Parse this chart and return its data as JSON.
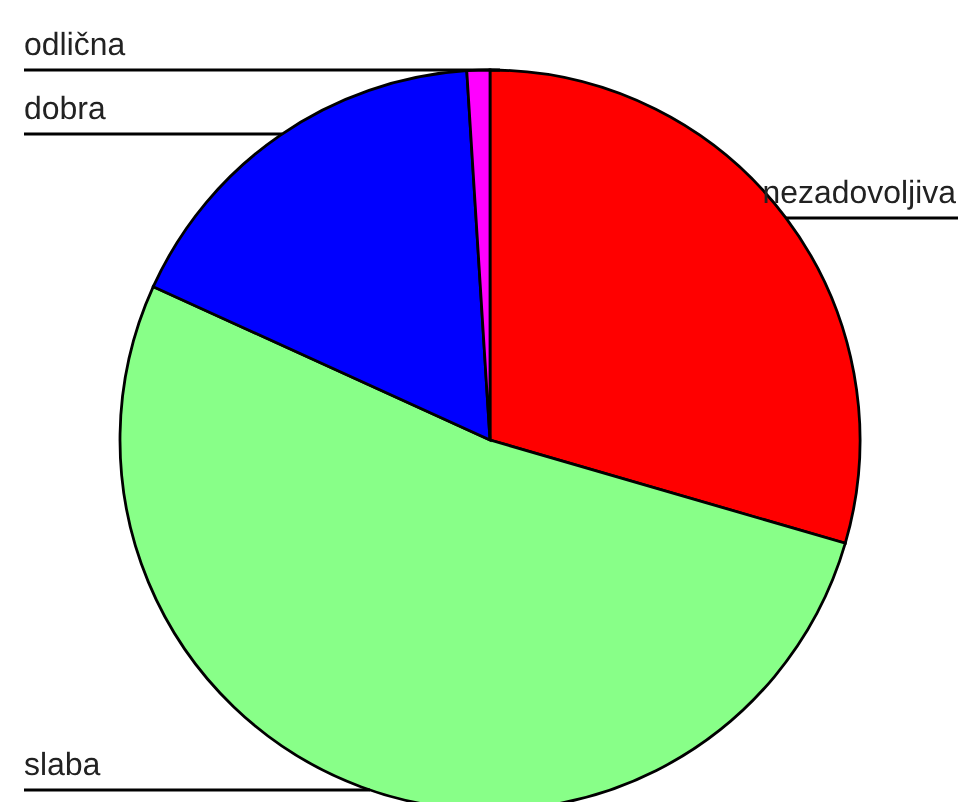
{
  "chart_data": {
    "type": "pie",
    "categories": [
      "nezadovoljiva",
      "slaba",
      "dobra",
      "odlična"
    ],
    "values": [
      29.5,
      52.3,
      17.2,
      1.0
    ],
    "colors": [
      "#ff0000",
      "#88ff88",
      "#0000ff",
      "#ff00ff"
    ]
  }
}
